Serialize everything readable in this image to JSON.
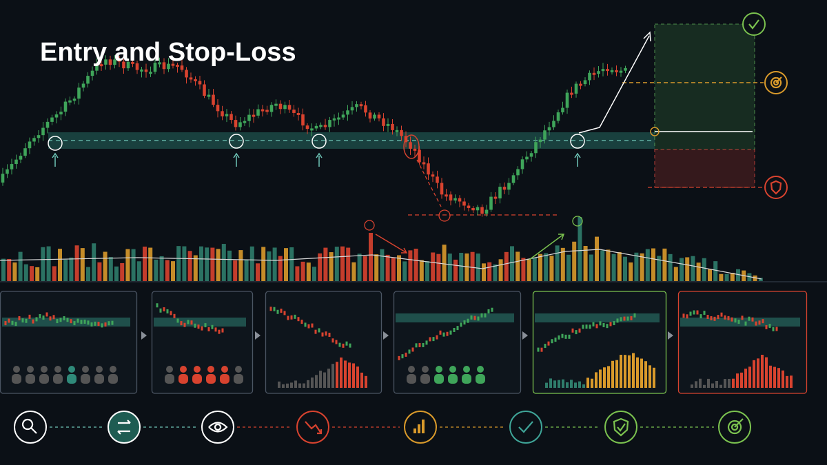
{
  "header": {
    "title": "Entry and Stop-Loss"
  }
}
